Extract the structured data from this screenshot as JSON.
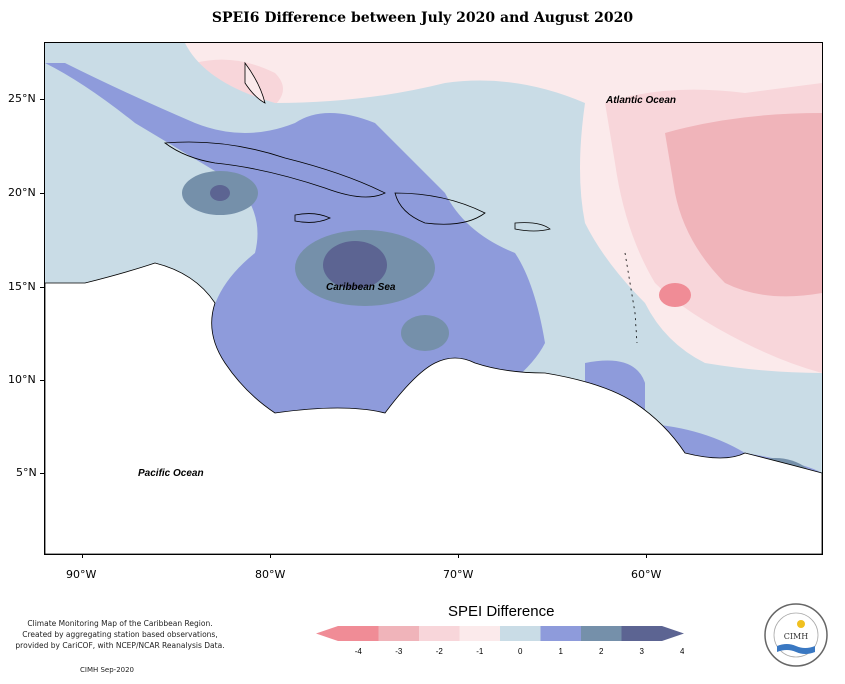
{
  "title": "SPEI6 Difference between July 2020 and August 2020",
  "map": {
    "lat_labels": [
      "25°N",
      "20°N",
      "15°N",
      "10°N",
      "5°N"
    ],
    "lon_labels": [
      "90°W",
      "80°W",
      "70°W",
      "60°W"
    ],
    "ocean_labels": {
      "atlantic": "Atlantic Ocean",
      "caribbean": "Caribbean Sea",
      "pacific": "Pacific Ocean"
    }
  },
  "legend": {
    "title": "SPEI Difference",
    "ticks": [
      "-4",
      "-3",
      "-2",
      "-1",
      "0",
      "1",
      "2",
      "3",
      "4"
    ],
    "colors": [
      "#f08c96",
      "#f0b4ba",
      "#f8d6da",
      "#fbeaeb",
      "#c9dce6",
      "#8e9bdb",
      "#7590aa",
      "#5c6492"
    ]
  },
  "credit": {
    "lines": [
      "Climate Monitoring Map of the Caribbean Region.",
      "Created by aggregating station based observations,",
      "provided by CariCOF, with NCEP/NCAR Reanalysis Data."
    ],
    "footer": "CIMH Sep-2020"
  },
  "logo": {
    "text": "CIMH",
    "icon": "sun-icon"
  }
}
